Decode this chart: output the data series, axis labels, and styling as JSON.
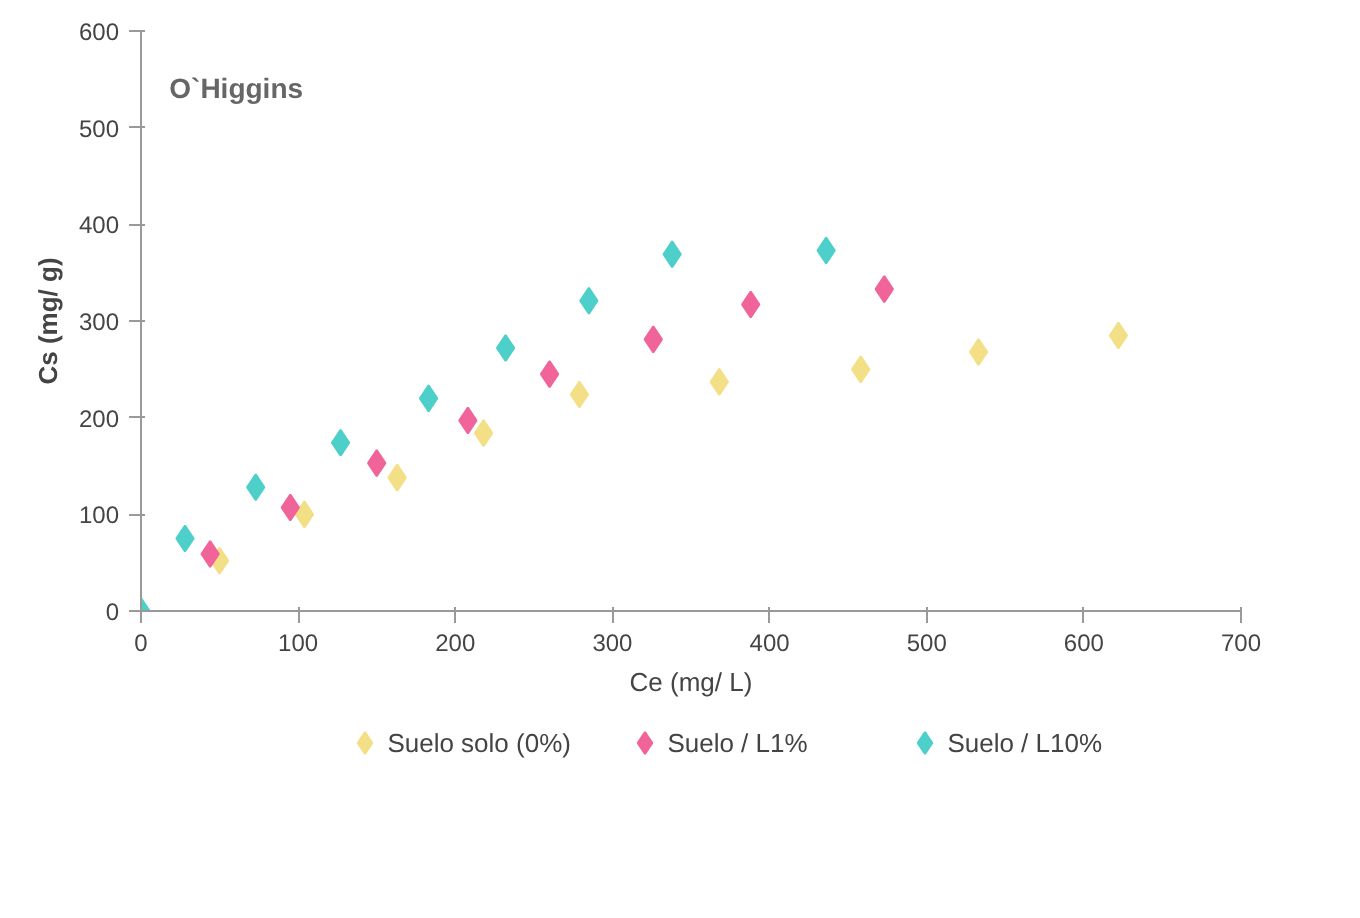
{
  "chart_data": {
    "type": "scatter",
    "xlabel": "Ce (mg/ L)",
    "ylabel": "Cs (mg/ g)",
    "annotations": [
      "O`Higgins"
    ],
    "xlim": [
      0,
      700
    ],
    "ylim": [
      0,
      600
    ],
    "xticks": [
      0,
      100,
      200,
      300,
      400,
      500,
      600,
      700
    ],
    "yticks": [
      0,
      100,
      200,
      300,
      400,
      500,
      600
    ],
    "grid": false,
    "legend": "bottom",
    "marker": "diamond",
    "series": [
      {
        "name": "Suelo solo (0%)",
        "color": "#f3df85",
        "x": [
          50,
          104,
          163,
          218,
          279,
          368,
          458,
          533,
          622
        ],
        "values": [
          52,
          100,
          138,
          184,
          224,
          237,
          250,
          268,
          285
        ]
      },
      {
        "name": "Suelo / L1%",
        "color": "#f0649a",
        "x": [
          44,
          95,
          150,
          208,
          260,
          326,
          388,
          473
        ],
        "values": [
          59,
          107,
          153,
          197,
          245,
          281,
          317,
          333
        ]
      },
      {
        "name": "Suelo / L10%",
        "color": "#4dcfca",
        "x": [
          0,
          28,
          73,
          127,
          183,
          232,
          285,
          338,
          436
        ],
        "values": [
          0,
          75,
          128,
          174,
          220,
          272,
          321,
          369,
          373
        ]
      }
    ]
  }
}
